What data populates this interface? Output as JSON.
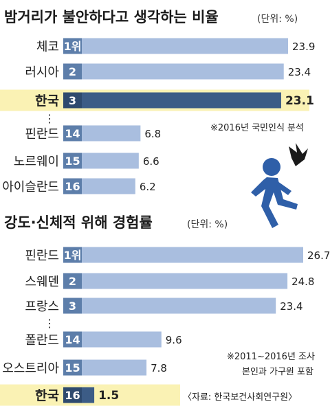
{
  "colors": {
    "bar": "#a9bedf",
    "bar_highlight": "#3c5c86",
    "rank_box": "#5d7eaa",
    "rank_box_highlight": "#2e4a6e",
    "highlight_row": "#faf2b4",
    "icon": "#2f5fa8",
    "icon_alert": "#1a1a1a"
  },
  "chart_data": [
    {
      "type": "bar",
      "title": "밤거리가 불안하다고 생각하는 비율",
      "unit_note": "(단위: %)",
      "categories": [
        "체코",
        "러시아",
        "한국",
        "핀란드",
        "노르웨이",
        "아이슬란드"
      ],
      "ranks": [
        "1위",
        "2",
        "3",
        "14",
        "15",
        "16"
      ],
      "values": [
        23.9,
        23.4,
        23.1,
        6.8,
        6.6,
        6.2
      ],
      "value_labels": [
        "23.9",
        "23.4",
        "23.1",
        "6.8",
        "6.6",
        "6.2"
      ],
      "highlight": "한국",
      "gap_marker": "⋮",
      "xlim": [
        0,
        23.9
      ]
    },
    {
      "type": "bar",
      "title": "강도·신체적 위해 경험률",
      "unit_note": "(단위: %)",
      "categories": [
        "핀란드",
        "스웨덴",
        "프랑스",
        "폴란드",
        "오스트리아",
        "한국"
      ],
      "ranks": [
        "1위",
        "2",
        "3",
        "14",
        "15",
        "16"
      ],
      "values": [
        26.7,
        24.8,
        23.4,
        9.6,
        7.8,
        1.5
      ],
      "value_labels": [
        "26.7",
        "24.8",
        "23.4",
        "9.6",
        "7.8",
        "1.5"
      ],
      "highlight": "한국",
      "gap_marker": "⋮",
      "xlim": [
        0,
        26.7
      ]
    }
  ],
  "notes": {
    "survey_2016": "※2016년 국민인식 분석",
    "survey_period": "※2011~2016년 조사",
    "survey_scope": "본인과 가구원 포함",
    "source": "〈자료: 한국보건사회연구원〉"
  },
  "icons": {
    "figure": "running-person-icon",
    "alert": "alert-burst-icon"
  }
}
